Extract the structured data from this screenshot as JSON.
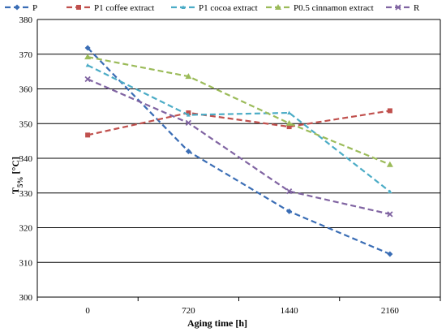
{
  "chart_data": {
    "type": "line",
    "title": "",
    "xlabel": "Aging time [h]",
    "ylabel_main": "T",
    "ylabel_sub": "5%",
    "ylabel_unit": " [°C]",
    "x": [
      0,
      720,
      1440,
      2160
    ],
    "x_tick_labels": [
      "0",
      "720",
      "1440",
      "2160"
    ],
    "ylim": [
      300,
      380
    ],
    "y_ticks": [
      300,
      310,
      320,
      330,
      340,
      350,
      360,
      370,
      380
    ],
    "grid": true,
    "legend_position": "top",
    "series": [
      {
        "name": "P",
        "color": "#3A6DB5",
        "marker": "diamond",
        "values": [
          371.8,
          342.0,
          324.7,
          312.4
        ]
      },
      {
        "name": "P1 coffee extract",
        "color": "#C0504D",
        "marker": "square",
        "values": [
          346.7,
          353.1,
          349.1,
          353.7
        ]
      },
      {
        "name": "P1 cocoa extract",
        "color": "#4BACC6",
        "marker": "triangle-small",
        "values": [
          366.8,
          352.5,
          353.1,
          330.4
        ]
      },
      {
        "name": "P0.5 cinnamon extract",
        "color": "#9BBB59",
        "marker": "triangle",
        "values": [
          369.2,
          363.6,
          350.1,
          338.2
        ]
      },
      {
        "name": "R",
        "color": "#8064A2",
        "marker": "x",
        "values": [
          362.8,
          350.2,
          330.5,
          323.9
        ]
      }
    ]
  }
}
